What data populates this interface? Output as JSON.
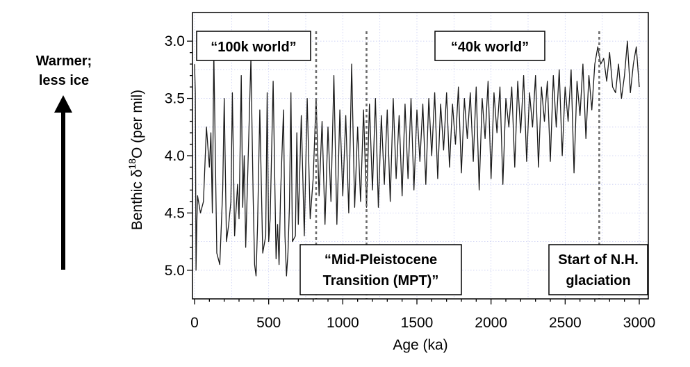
{
  "chart_data": {
    "type": "line",
    "title": "",
    "xlabel": "Age (ka)",
    "ylabel": {
      "prefix": "Benthic δ",
      "superscript": "18",
      "suffix": "O (per mil)"
    },
    "xlim": [
      0,
      3000
    ],
    "ylim": [
      2.75,
      5.25
    ],
    "y_inverted": true,
    "x_ticks": [
      0,
      500,
      1000,
      1500,
      2000,
      2500,
      3000
    ],
    "y_ticks": [
      3.0,
      3.5,
      4.0,
      4.5,
      5.0
    ],
    "y_tick_labels": [
      "3.0",
      "3.5",
      "4.0",
      "4.5",
      "5.0"
    ],
    "grid": true,
    "series": [
      {
        "name": "Benthic δ18O stack",
        "color": "#1a1a1a",
        "x": [
          0,
          5,
          10,
          15,
          20,
          40,
          60,
          80,
          100,
          110,
          120,
          130,
          150,
          170,
          190,
          200,
          215,
          230,
          245,
          255,
          270,
          290,
          300,
          315,
          325,
          335,
          345,
          360,
          380,
          395,
          405,
          415,
          425,
          440,
          460,
          480,
          490,
          500,
          510,
          530,
          550,
          560,
          570,
          580,
          600,
          610,
          620,
          630,
          640,
          650,
          660,
          680,
          690,
          700,
          720,
          740,
          760,
          780,
          800,
          820,
          840,
          860,
          880,
          900,
          920,
          940,
          960,
          980,
          1000,
          1020,
          1040,
          1060,
          1080,
          1100,
          1120,
          1140,
          1160,
          1180,
          1200,
          1220,
          1240,
          1260,
          1280,
          1300,
          1320,
          1340,
          1360,
          1380,
          1400,
          1420,
          1440,
          1460,
          1480,
          1500,
          1520,
          1540,
          1560,
          1580,
          1600,
          1620,
          1640,
          1660,
          1680,
          1700,
          1720,
          1740,
          1760,
          1780,
          1800,
          1820,
          1840,
          1860,
          1880,
          1900,
          1920,
          1940,
          1960,
          1980,
          2000,
          2020,
          2040,
          2060,
          2080,
          2100,
          2120,
          2140,
          2160,
          2180,
          2200,
          2220,
          2240,
          2260,
          2280,
          2300,
          2320,
          2340,
          2360,
          2380,
          2400,
          2420,
          2440,
          2460,
          2480,
          2500,
          2520,
          2540,
          2560,
          2580,
          2600,
          2620,
          2640,
          2660,
          2680,
          2700,
          2720,
          2740,
          2760,
          2780,
          2800,
          2820,
          2840,
          2860,
          2880,
          2900,
          2920,
          2940,
          2960,
          2980,
          3000
        ],
        "values": [
          3.2,
          3.45,
          5.0,
          4.6,
          4.35,
          4.5,
          4.4,
          3.75,
          4.1,
          3.8,
          4.5,
          3.1,
          4.85,
          4.95,
          4.3,
          3.5,
          4.75,
          4.6,
          4.4,
          3.45,
          4.7,
          4.25,
          4.55,
          3.3,
          4.45,
          4.0,
          4.8,
          4.1,
          3.15,
          4.35,
          4.95,
          5.05,
          4.6,
          3.6,
          4.85,
          4.7,
          3.45,
          4.75,
          4.55,
          3.35,
          4.9,
          4.6,
          4.95,
          4.35,
          3.6,
          4.7,
          5.05,
          4.85,
          4.45,
          3.45,
          4.75,
          4.7,
          3.8,
          4.6,
          3.65,
          4.7,
          3.5,
          4.55,
          4.2,
          3.5,
          4.35,
          3.7,
          4.6,
          3.75,
          4.4,
          3.3,
          4.6,
          3.6,
          4.35,
          3.65,
          4.5,
          3.2,
          4.45,
          3.75,
          4.4,
          3.6,
          4.45,
          3.55,
          4.3,
          3.5,
          4.45,
          3.65,
          4.25,
          3.6,
          4.4,
          3.5,
          4.2,
          3.65,
          4.35,
          3.55,
          4.2,
          3.5,
          4.3,
          3.6,
          4.05,
          3.55,
          4.25,
          3.5,
          4.0,
          3.45,
          4.2,
          3.55,
          3.95,
          3.45,
          4.1,
          3.55,
          3.9,
          3.4,
          4.15,
          3.5,
          3.85,
          3.45,
          4.05,
          3.4,
          4.3,
          3.5,
          3.85,
          3.35,
          4.2,
          3.45,
          3.8,
          3.4,
          4.25,
          3.5,
          3.75,
          3.4,
          4.1,
          3.35,
          3.8,
          3.3,
          4.05,
          3.45,
          3.75,
          3.3,
          4.1,
          3.4,
          3.7,
          3.35,
          4.05,
          3.3,
          3.75,
          3.25,
          4.0,
          3.4,
          3.7,
          3.25,
          4.15,
          3.35,
          3.65,
          3.2,
          3.85,
          3.3,
          3.6,
          3.2,
          3.05,
          3.2,
          3.15,
          3.35,
          3.1,
          3.4,
          3.45,
          3.2,
          3.5,
          3.3,
          3.0,
          3.45,
          3.2,
          3.05,
          3.4
        ]
      }
    ],
    "annotations": [
      {
        "text": "“100k world”",
        "boxed": true
      },
      {
        "text": "“40k world”",
        "boxed": true
      },
      {
        "lines": [
          "“Mid-Pleistocene",
          "Transition (MPT)”"
        ],
        "boxed": true
      },
      {
        "lines": [
          "Start of N.H.",
          "glaciation"
        ],
        "boxed": true
      }
    ],
    "vertical_markers": [
      820,
      1160,
      2730
    ],
    "side_label": {
      "lines": [
        "Warmer;",
        "less ice"
      ]
    }
  },
  "colors": {
    "line": "#1a1a1a",
    "grid": "#c8ccf2",
    "frame": "#000000",
    "marker": "#6d6d6d",
    "text": "#000000"
  }
}
